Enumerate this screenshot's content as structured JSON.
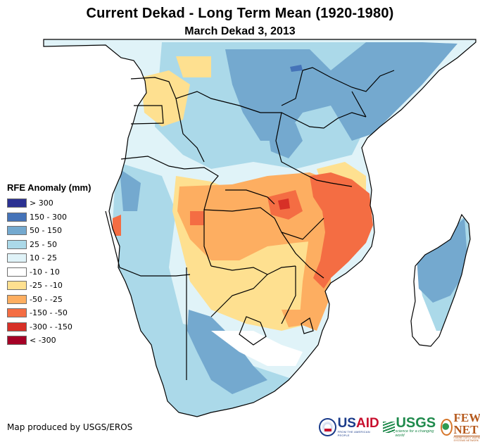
{
  "header": {
    "title": "Current Dekad - Long Term Mean (1920-1980)",
    "subtitle": "March Dekad 3, 2013"
  },
  "legend": {
    "title": "RFE Anomaly (mm)",
    "items": [
      {
        "label": "> 300",
        "color": "#2b3192"
      },
      {
        "label": "150 - 300",
        "color": "#4573b8"
      },
      {
        "label": "50 - 150",
        "color": "#74a9cf"
      },
      {
        "label": "25 - 50",
        "color": "#abd9e9"
      },
      {
        "label": "10 - 25",
        "color": "#e0f3f8"
      },
      {
        "label": "-10 - 10",
        "color": "#ffffff"
      },
      {
        "label": "-25 - -10",
        "color": "#fee090"
      },
      {
        "label": "-50 - -25",
        "color": "#fdae61"
      },
      {
        "label": "-150 - -50",
        "color": "#f46d43"
      },
      {
        "label": "-300 - -150",
        "color": "#d73027"
      },
      {
        "label": "< -300",
        "color": "#a50026"
      }
    ]
  },
  "map": {
    "region": "Southern and Eastern Africa",
    "features": {
      "continent": "Africa (southern half)",
      "island": "Madagascar"
    }
  },
  "credit": "Map produced by USGS/EROS",
  "logos": {
    "usaid": {
      "word_a": "US",
      "word_b": "AID",
      "tagline": "FROM THE AMERICAN PEOPLE"
    },
    "usgs": {
      "word": "USGS",
      "tagline": "science for a changing world"
    },
    "fewsnet": {
      "word": "FEWS NET",
      "tagline": "FAMINE EARLY WARNING SYSTEMS NETWORK"
    }
  }
}
